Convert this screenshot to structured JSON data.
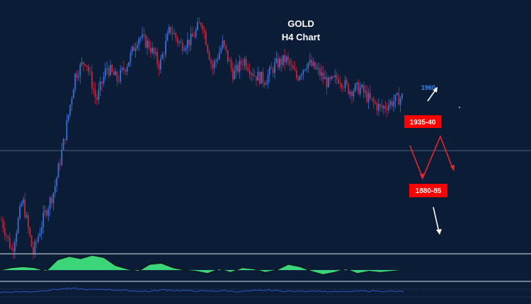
{
  "chart_data": {
    "type": "candlestick",
    "title": "GOLD",
    "subtitle": "H4 Chart",
    "colors": {
      "background": "#0b1c36",
      "candle_up": "#3b6fd6",
      "candle_down": "#c0283e",
      "hline": "#4d6482",
      "panel_separator": "#9aa3b0",
      "label_box": "#ff0000",
      "label_text": "#ffffff",
      "target_text": "#2f8cff",
      "red_arrow": "#e4262e",
      "white_arrow": "#ffffff",
      "oscillator_fill": "#3cd67a",
      "oscillator_line": "#111111",
      "rsi_line": "#2d57c8"
    },
    "price_path": [
      1850,
      1826,
      1866,
      1824,
      1852,
      1873,
      1914,
      1962,
      1974,
      1942,
      1968,
      1958,
      1972,
      1992,
      1985,
      1969,
      1998,
      1985,
      1989,
      2004,
      1967,
      1986,
      1962,
      1974,
      1962,
      1958,
      1970,
      1974,
      1960,
      1972,
      1965,
      1955,
      1960,
      1950,
      1952,
      1942,
      1936,
      1941,
      1945
    ],
    "annotations": {
      "levels": [
        {
          "label": "1935-40",
          "box": "red"
        },
        {
          "label": "1880-85",
          "box": "red"
        }
      ],
      "target_label": "1960"
    },
    "scenario_path": [
      1938,
      1880,
      1945,
      1920
    ],
    "oscillator": [
      0,
      2,
      3,
      2,
      -1,
      9,
      12,
      10,
      13,
      11,
      4,
      1,
      -1,
      5,
      6,
      2,
      0,
      -1,
      -3,
      1,
      -2,
      2,
      1,
      -2,
      0,
      5,
      3,
      -1,
      -4,
      -2,
      1,
      -3,
      -1,
      -2,
      -1,
      0
    ],
    "rsi_values": [
      44,
      47,
      46,
      52,
      58,
      60,
      55,
      57,
      53,
      50,
      48,
      55,
      52,
      50,
      49,
      51,
      47,
      50,
      53,
      49,
      48,
      51,
      47,
      46,
      49,
      50,
      48,
      47
    ]
  }
}
